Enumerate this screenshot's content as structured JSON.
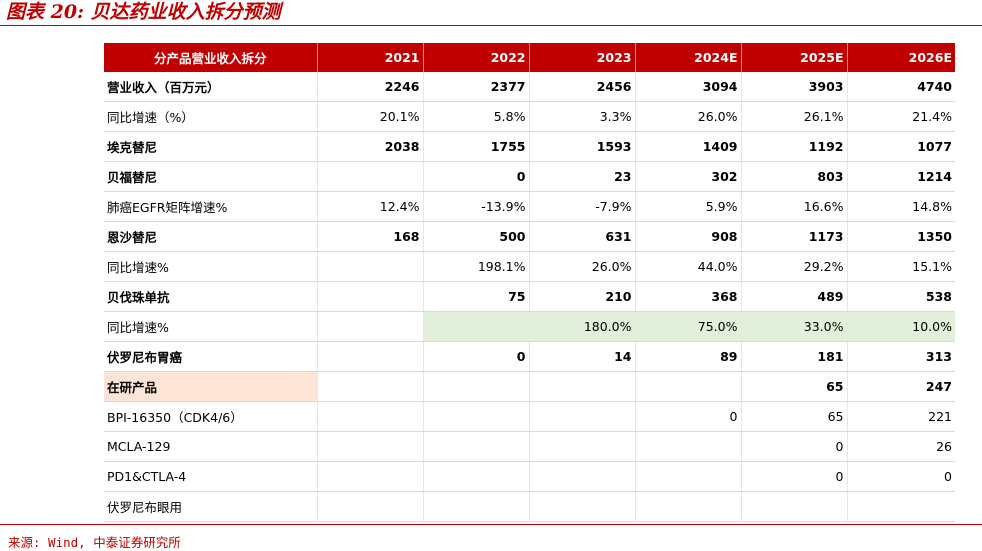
{
  "figure": {
    "title": "图表 20: 贝达药业收入拆分预测",
    "source": "来源: Wind, 中泰证券研究所"
  },
  "table": {
    "headers": [
      "分产品营业收入拆分",
      "2021",
      "2022",
      "2023",
      "2024E",
      "2025E",
      "2026E"
    ],
    "rows": [
      {
        "label": "营业收入（百万元）",
        "values": [
          "2246",
          "2377",
          "2456",
          "3094",
          "3903",
          "4740"
        ]
      },
      {
        "label": "同比增速（%）",
        "values": [
          "20.1%",
          "5.8%",
          "3.3%",
          "26.0%",
          "26.1%",
          "21.4%"
        ]
      },
      {
        "label": "埃克替尼",
        "values": [
          "2038",
          "1755",
          "1593",
          "1409",
          "1192",
          "1077"
        ]
      },
      {
        "label": "贝福替尼",
        "values": [
          "",
          "0",
          "23",
          "302",
          "803",
          "1214"
        ]
      },
      {
        "label": "肺癌EGFR矩阵增速%",
        "values": [
          "12.4%",
          "-13.9%",
          "-7.9%",
          "5.9%",
          "16.6%",
          "14.8%"
        ]
      },
      {
        "label": "恩沙替尼",
        "values": [
          "168",
          "500",
          "631",
          "908",
          "1173",
          "1350"
        ]
      },
      {
        "label": "同比增速%",
        "values": [
          "",
          "198.1%",
          "26.0%",
          "44.0%",
          "29.2%",
          "15.1%"
        ]
      },
      {
        "label": "贝伐珠单抗",
        "values": [
          "",
          "75",
          "210",
          "368",
          "489",
          "538"
        ]
      },
      {
        "label": "同比增速%",
        "values": [
          "",
          "",
          "180.0%",
          "75.0%",
          "33.0%",
          "10.0%"
        ]
      },
      {
        "label": "伏罗尼布胃癌",
        "values": [
          "",
          "0",
          "14",
          "89",
          "181",
          "313"
        ]
      },
      {
        "label": "在研产品",
        "values": [
          "",
          "",
          "",
          "",
          "65",
          "247"
        ]
      },
      {
        "label": "BPI-16350（CDK4/6）",
        "values": [
          "",
          "",
          "",
          "0",
          "65",
          "221"
        ]
      },
      {
        "label": "MCLA-129",
        "values": [
          "",
          "",
          "",
          "",
          "0",
          "26"
        ]
      },
      {
        "label": "PD1&CTLA-4",
        "values": [
          "",
          "",
          "",
          "",
          "0",
          "0"
        ]
      },
      {
        "label": "伏罗尼布眼用",
        "values": [
          "",
          "",
          "",
          "",
          "",
          ""
        ]
      }
    ]
  },
  "colors": {
    "accent_red": "#c00000",
    "highlight_green": "#e2efda",
    "highlight_pink": "#fce4d6"
  }
}
